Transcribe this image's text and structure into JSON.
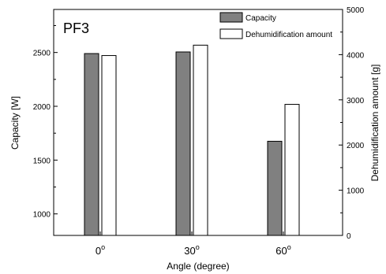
{
  "chart_data": {
    "type": "bar",
    "title": "PF3",
    "categories": [
      "0",
      "30",
      "60"
    ],
    "category_suffix": "o",
    "xlabel": "Angle (degree)",
    "ylabel": "Capacity [W]",
    "y2label": "Dehumidification amount [g]",
    "ylim": [
      800,
      2900
    ],
    "y2lim": [
      0,
      5000
    ],
    "yticks": [
      1000,
      1500,
      2000,
      2500
    ],
    "y2ticks": [
      0,
      1000,
      2000,
      3000,
      4000,
      5000
    ],
    "legend_position": "top-right",
    "grid": false,
    "series": [
      {
        "name": "Capacity",
        "axis": "left",
        "color": "#808080",
        "values": [
          2490,
          2505,
          1675
        ]
      },
      {
        "name": "Dehumidification amount",
        "axis": "right",
        "color": "#ffffff",
        "values": [
          3980,
          4210,
          2900
        ]
      }
    ]
  }
}
